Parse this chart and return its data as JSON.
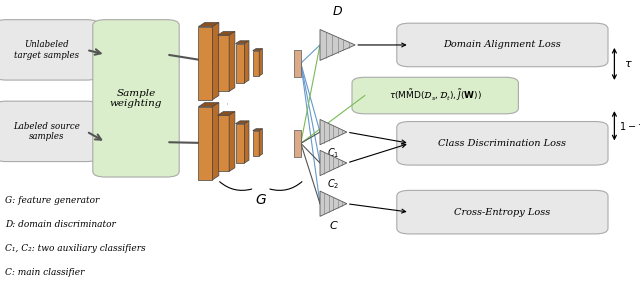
{
  "fig_width": 6.4,
  "fig_height": 2.81,
  "dpi": 100,
  "bg_color": "#ffffff",
  "cnn_orange": "#d4893e",
  "cnn_dark": "#8a5020",
  "cnn_edge": "#444444",
  "box_gray_fc": "#e8e8e8",
  "box_gray_ec": "#aaaaaa",
  "box_green_fc": "#daeecb",
  "box_green_ec": "#aaaaaa",
  "tri_fc": "#cccccc",
  "tri_ec": "#555555",
  "blue_color": "#6699cc",
  "green_color": "#77bb55",
  "dark_color": "#555555",
  "legend_lines": [
    "G: feature generator",
    "D: domain discriminator",
    "C₁, C₂: two auxiliary classifiers",
    "C: main classifier"
  ]
}
